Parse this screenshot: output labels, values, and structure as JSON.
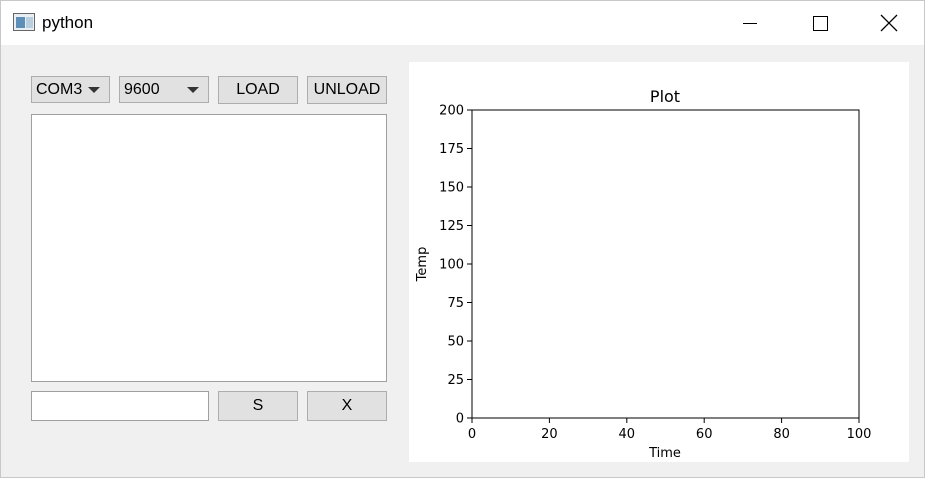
{
  "window": {
    "title": "python"
  },
  "controls": {
    "port_selected": "COM3",
    "baud_selected": "9600",
    "load_label": "LOAD",
    "unload_label": "UNLOAD",
    "send_label": "S",
    "clear_label": "X",
    "input_value": "",
    "output_text": ""
  },
  "chart_data": {
    "type": "line",
    "title": "Plot",
    "xlabel": "Time",
    "ylabel": "Temp",
    "xlim": [
      0,
      100
    ],
    "ylim": [
      0,
      200
    ],
    "x_ticks": [
      "0",
      "20",
      "40",
      "60",
      "80",
      "100"
    ],
    "y_ticks": [
      "0",
      "25",
      "50",
      "75",
      "100",
      "125",
      "150",
      "175",
      "200"
    ],
    "series": [],
    "grid": false
  }
}
